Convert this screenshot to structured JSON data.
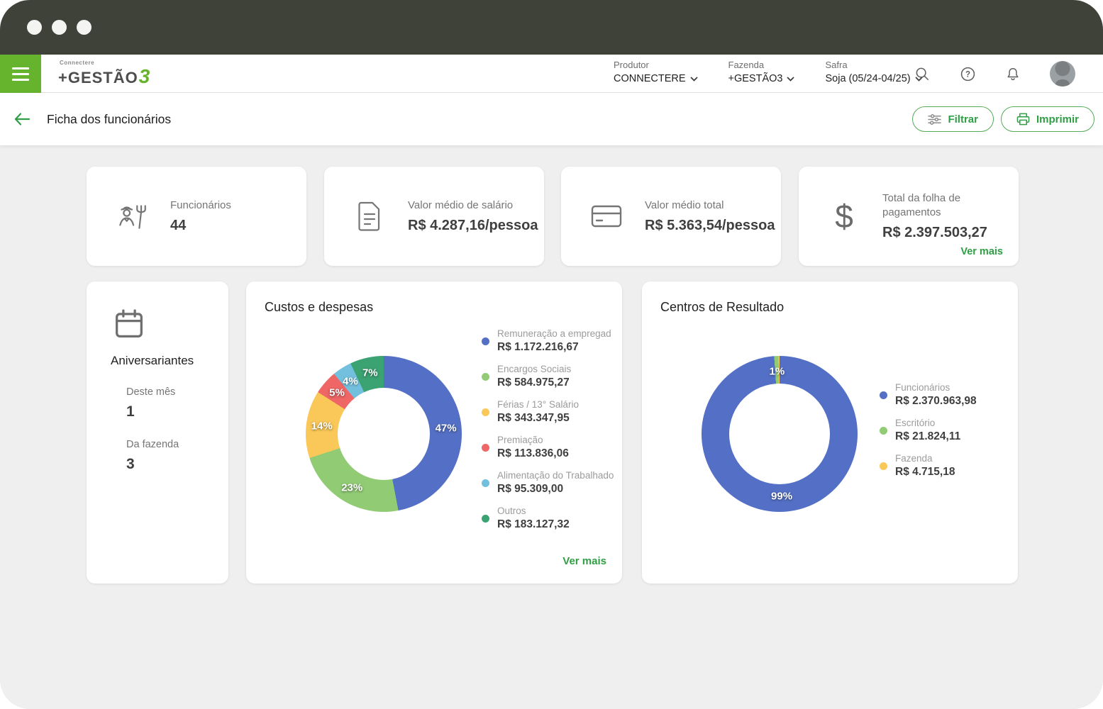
{
  "header": {
    "logo_top": "Connectere",
    "logo_main": "+GESTÃO",
    "logo_suffix": "3",
    "selectors": [
      {
        "label": "Produtor",
        "value": "CONNECTERE"
      },
      {
        "label": "Fazenda",
        "value": "+GESTÃO3"
      },
      {
        "label": "Safra",
        "value": "Soja (05/24-04/25)"
      }
    ]
  },
  "toolbar": {
    "title": "Ficha dos funcionários",
    "filter_label": "Filtrar",
    "print_label": "Imprimir"
  },
  "stat_cards": [
    {
      "icon": "farmer-icon",
      "label": "Funcionários",
      "value": "44"
    },
    {
      "icon": "document-icon",
      "label": "Valor médio de salário",
      "value": "R$ 4.287,16/pessoa"
    },
    {
      "icon": "credit-card-icon",
      "label": "Valor médio total",
      "value": "R$ 5.363,54/pessoa"
    },
    {
      "icon": "dollar-icon",
      "label": "Total da folha de pagamentos",
      "value": "R$ 2.397.503,27",
      "link": "Ver mais"
    }
  ],
  "birthdays": {
    "title": "Aniversariantes",
    "items": [
      {
        "label": "Deste mês",
        "value": "1"
      },
      {
        "label": "Da fazenda",
        "value": "3"
      }
    ]
  },
  "chart_data": [
    {
      "type": "pie",
      "variant": "donut",
      "title": "Custos e despesas",
      "legend_position": "right",
      "link": "Ver mais",
      "slices": [
        {
          "label": "Remuneração a empregad",
          "amount": "R$ 1.172.216,67",
          "value": 1172216.67,
          "pct": 47,
          "pct_label": "47%",
          "color": "#5470c6"
        },
        {
          "label": "Encargos Sociais",
          "amount": "R$ 584.975,27",
          "value": 584975.27,
          "pct": 23,
          "pct_label": "23%",
          "color": "#91cc75"
        },
        {
          "label": "Férias / 13° Salário",
          "amount": "R$ 343.347,95",
          "value": 343347.95,
          "pct": 14,
          "pct_label": "14%",
          "color": "#fac858"
        },
        {
          "label": "Premiação",
          "amount": "R$ 113.836,06",
          "value": 113836.06,
          "pct": 5,
          "pct_label": "5%",
          "color": "#ee6666"
        },
        {
          "label": "Alimentação do Trabalhado",
          "amount": "R$ 95.309,00",
          "value": 95309.0,
          "pct": 4,
          "pct_label": "4%",
          "color": "#73c0de"
        },
        {
          "label": "Outros",
          "amount": "R$ 183.127,32",
          "value": 183127.32,
          "pct": 7,
          "pct_label": "7%",
          "color": "#3ba272"
        }
      ]
    },
    {
      "type": "pie",
      "variant": "donut",
      "title": "Centros de Resultado",
      "legend_position": "right",
      "slices": [
        {
          "label": "Funcionários",
          "amount": "R$ 2.370.963,98",
          "value": 2370963.98,
          "pct": 98.89,
          "pct_label": "99%",
          "color": "#5470c6"
        },
        {
          "label": "Escritório",
          "amount": "R$ 21.824,11",
          "value": 21824.11,
          "pct": 0.91,
          "pct_label": "1%",
          "color": "#91cc75"
        },
        {
          "label": "Fazenda",
          "amount": "R$ 4.715,18",
          "value": 4715.18,
          "pct": 0.2,
          "pct_label": null,
          "color": "#fac858"
        }
      ]
    }
  ]
}
